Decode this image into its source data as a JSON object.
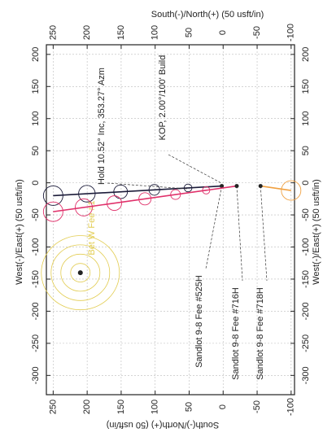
{
  "chart_data": {
    "type": "line",
    "x_label": "West(-)/East(+) (50 usft/in)",
    "y_label": "South(-)/North(+) (50 usft/in)",
    "xlim": [
      -330,
      215
    ],
    "xticks": [
      -300,
      -250,
      -200,
      -150,
      -100,
      -50,
      0,
      50,
      100,
      150,
      200
    ],
    "ylim": [
      -105,
      260
    ],
    "yticks": [
      -100,
      -50,
      0,
      50,
      100,
      150,
      200,
      250
    ],
    "grid": true,
    "series": [
      {
        "name": "Sandlot 9-8 Fee #525H",
        "color": "#1c1c3a",
        "x": [
          -5,
          -20
        ],
        "values": [
          2,
          250
        ]
      },
      {
        "name": "Sandlot 9-8 Fee #716H",
        "color": "#e0306a",
        "x": [
          -5,
          -45
        ],
        "values": [
          -20,
          250
        ]
      },
      {
        "name": "Sandlot 9-8 Fee #718H",
        "color": "#f0a040",
        "x": [
          -5,
          -12
        ],
        "values": [
          -55,
          -100
        ]
      }
    ],
    "target": {
      "name": "Bet W Fee #1",
      "color": "#e2cc50",
      "x": -140,
      "y": 210
    },
    "annotations": [
      "Hold 10.52° Inc, 353.27° Azm",
      "KOP, 2.00°/100' Build"
    ]
  }
}
